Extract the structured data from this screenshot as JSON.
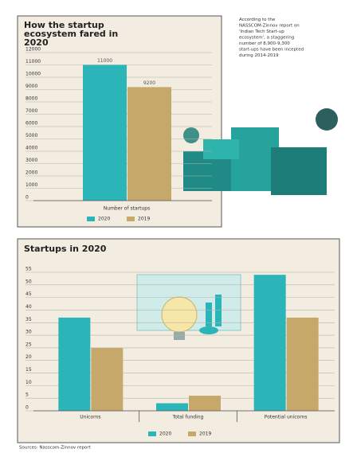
{
  "chart_data": [
    {
      "type": "bar",
      "title": "How the startup ecosystem fared in 2020",
      "note": "According to the NASSCOM-Zinnov report on 'Indian Tech Start-up ecosystem', a staggering number of 8,900-9,300 start-ups have been incepted during 2014-2019",
      "categories": [
        "Number of startups"
      ],
      "series": [
        {
          "name": "2020",
          "color": "#2bb5b8",
          "values": [
            11000
          ]
        },
        {
          "name": "2019",
          "color": "#c7a86b",
          "values": [
            9200
          ]
        }
      ],
      "ylim": [
        0,
        12000
      ],
      "yticks": [
        0,
        1000,
        2000,
        3000,
        4000,
        5000,
        6000,
        7000,
        8000,
        9000,
        10000,
        11000,
        12000
      ],
      "grid": true,
      "legend": "bottom"
    },
    {
      "type": "bar",
      "title": "Startups in 2020",
      "categories": [
        "Unicorns",
        "Total funding",
        "Potential unicorns"
      ],
      "series": [
        {
          "name": "2020",
          "color": "#2bb5b8",
          "values": [
            37,
            3,
            54
          ]
        },
        {
          "name": "2019",
          "color": "#c7a86b",
          "values": [
            25,
            6,
            37
          ]
        }
      ],
      "ylim": [
        0,
        55
      ],
      "yticks": [
        0,
        5,
        10,
        15,
        20,
        25,
        30,
        35,
        40,
        45,
        50,
        55
      ],
      "grid": true,
      "legend": "bottom"
    }
  ],
  "source": "Sources: Nasscom-Zinnov report"
}
